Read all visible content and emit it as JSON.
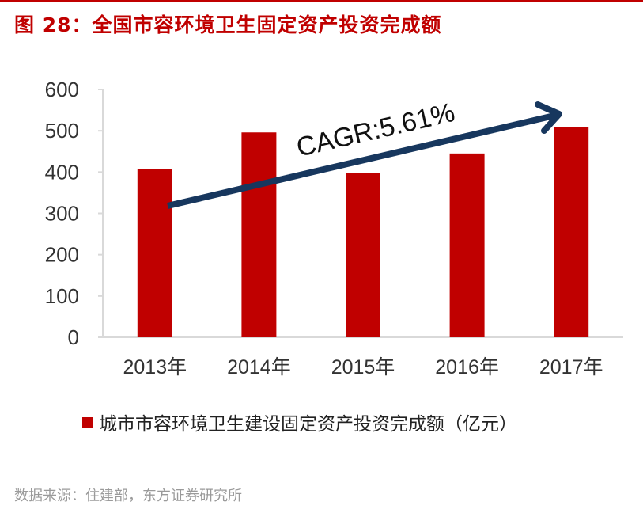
{
  "title": "图 28：全国市容环境卫生固定资产投资完成额",
  "source": "数据来源：住建部，东方证券研究所",
  "colors": {
    "bar": "#c00000",
    "arrow": "#17375e",
    "title": "#c00000"
  },
  "chart_data": {
    "type": "bar",
    "categories": [
      "2013年",
      "2014年",
      "2015年",
      "2016年",
      "2017年"
    ],
    "series": [
      {
        "name": "城市市容环境卫生建设固定资产投资完成额（亿元）",
        "values": [
          408,
          496,
          398,
          445,
          508
        ]
      }
    ],
    "yticks": [
      "0",
      "100",
      "200",
      "300",
      "400",
      "500",
      "600"
    ],
    "ylim": [
      0,
      600
    ],
    "grid": false,
    "legend": "bottom",
    "annotation": "CAGR:5.61%"
  }
}
